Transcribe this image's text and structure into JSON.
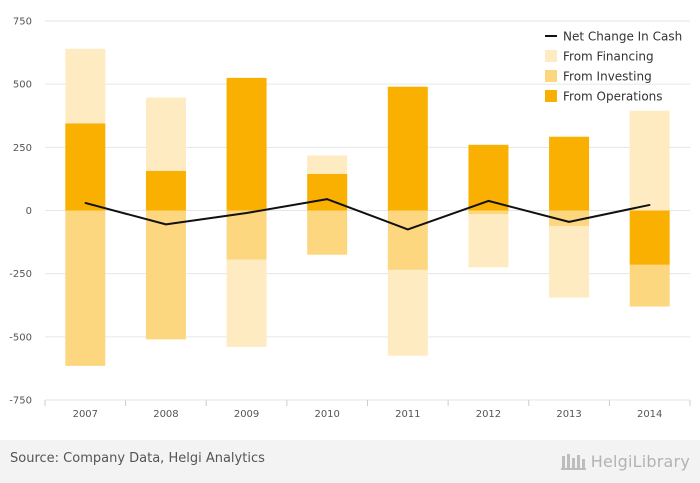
{
  "chart_data": {
    "type": "bar",
    "subtype": "stacked-with-line",
    "categories": [
      "2007",
      "2008",
      "2009",
      "2010",
      "2011",
      "2012",
      "2013",
      "2014"
    ],
    "series": [
      {
        "name": "From Operations",
        "kind": "bar",
        "color": "#f9b000",
        "values": [
          345,
          157,
          525,
          145,
          490,
          260,
          292,
          -215
        ]
      },
      {
        "name": "From Investing",
        "kind": "bar",
        "color": "#fdd680",
        "values": [
          -615,
          -510,
          -195,
          -175,
          -235,
          -15,
          -62,
          -165
        ]
      },
      {
        "name": "From Financing",
        "kind": "bar",
        "color": "#ffebc2",
        "values": [
          295,
          290,
          -345,
          73,
          -340,
          -210,
          -283,
          395
        ]
      },
      {
        "name": "Net Change In Cash",
        "kind": "line",
        "color": "#111111",
        "values": [
          30,
          -55,
          -10,
          45,
          -75,
          38,
          -45,
          22
        ]
      }
    ],
    "ylim": [
      -750,
      750
    ],
    "yticks": [
      750,
      500,
      250,
      0,
      -250,
      -500,
      -750
    ],
    "grid": true,
    "legend_position": "top-right",
    "legend_order": [
      "Net Change In Cash",
      "From Financing",
      "From Investing",
      "From Operations"
    ]
  },
  "footer": {
    "source": "Source: Company Data, Helgi Analytics",
    "brand": "HelgiLibrary"
  }
}
